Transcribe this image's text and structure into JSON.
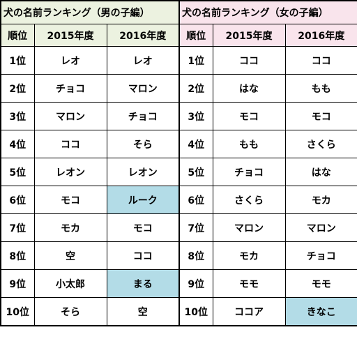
{
  "colors": {
    "boys_header_bg": "#ecf2e0",
    "girls_header_bg": "#f9e4ec",
    "highlight": "#b3dce7"
  },
  "boys": {
    "title": "犬の名前ランキング（男の子編）",
    "headers": [
      "順位",
      "2015年度",
      "2016年度"
    ],
    "rows": [
      {
        "rank": "1位",
        "y2015": "レオ",
        "y2016": "レオ",
        "highlight2016": false
      },
      {
        "rank": "2位",
        "y2015": "チョコ",
        "y2016": "マロン",
        "highlight2016": false
      },
      {
        "rank": "3位",
        "y2015": "マロン",
        "y2016": "チョコ",
        "highlight2016": false
      },
      {
        "rank": "4位",
        "y2015": "ココ",
        "y2016": "そら",
        "highlight2016": false
      },
      {
        "rank": "5位",
        "y2015": "レオン",
        "y2016": "レオン",
        "highlight2016": false
      },
      {
        "rank": "6位",
        "y2015": "モコ",
        "y2016": "ルーク",
        "highlight2016": true
      },
      {
        "rank": "7位",
        "y2015": "モカ",
        "y2016": "モコ",
        "highlight2016": false
      },
      {
        "rank": "8位",
        "y2015": "空",
        "y2016": "ココ",
        "highlight2016": false
      },
      {
        "rank": "9位",
        "y2015": "小太郎",
        "y2016": "まる",
        "highlight2016": true
      },
      {
        "rank": "10位",
        "y2015": "そら",
        "y2016": "空",
        "highlight2016": false
      }
    ]
  },
  "girls": {
    "title": "犬の名前ランキング（女の子編）",
    "headers": [
      "順位",
      "2015年度",
      "2016年度"
    ],
    "rows": [
      {
        "rank": "1位",
        "y2015": "ココ",
        "y2016": "ココ",
        "highlight2016": false
      },
      {
        "rank": "2位",
        "y2015": "はな",
        "y2016": "もも",
        "highlight2016": false
      },
      {
        "rank": "3位",
        "y2015": "モコ",
        "y2016": "モコ",
        "highlight2016": false
      },
      {
        "rank": "4位",
        "y2015": "もも",
        "y2016": "さくら",
        "highlight2016": false
      },
      {
        "rank": "5位",
        "y2015": "チョコ",
        "y2016": "はな",
        "highlight2016": false
      },
      {
        "rank": "6位",
        "y2015": "さくら",
        "y2016": "モカ",
        "highlight2016": false
      },
      {
        "rank": "7位",
        "y2015": "マロン",
        "y2016": "マロン",
        "highlight2016": false
      },
      {
        "rank": "8位",
        "y2015": "モカ",
        "y2016": "チョコ",
        "highlight2016": false
      },
      {
        "rank": "9位",
        "y2015": "モモ",
        "y2016": "モモ",
        "highlight2016": false
      },
      {
        "rank": "10位",
        "y2015": "ココア",
        "y2016": "きなこ",
        "highlight2016": true
      }
    ]
  }
}
